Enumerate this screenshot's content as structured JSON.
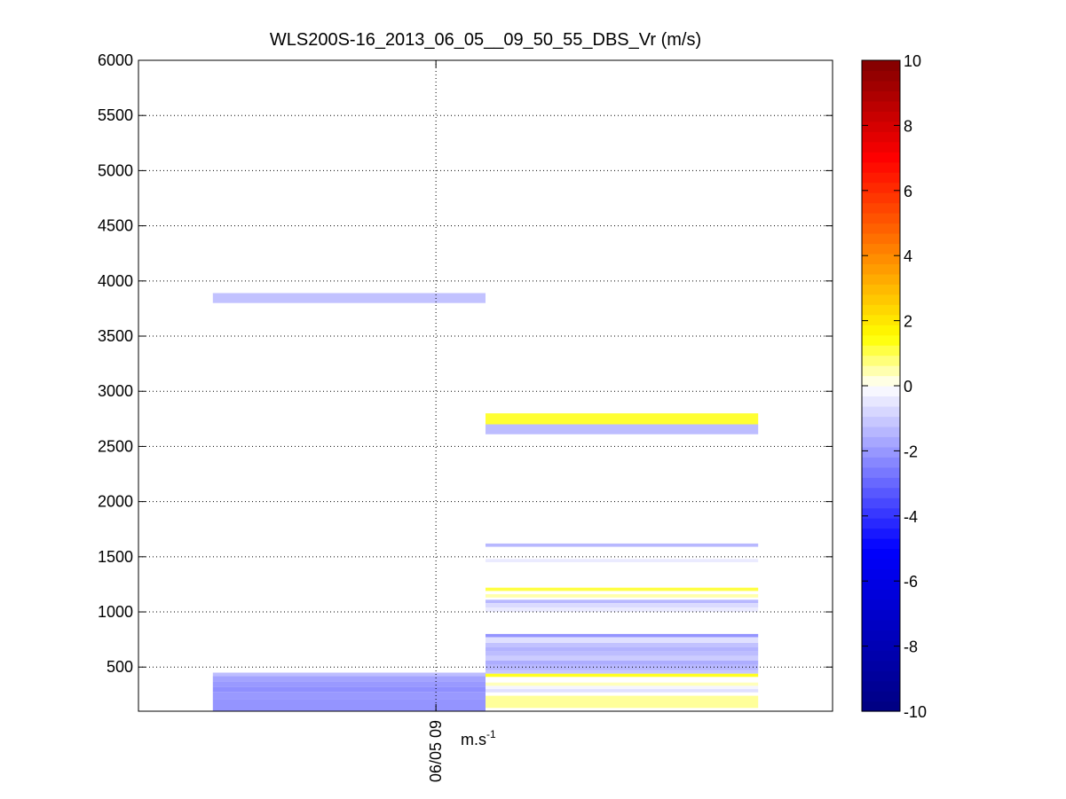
{
  "chart_data": {
    "type": "heatmap",
    "title": "WLS200S-16_2013_06_05__09_50_55_DBS_Vr (m/s)",
    "xlabel": "m.s",
    "xlabel_superscript": "-1",
    "ylabel": "",
    "x_tick_labels": [
      "06/05 09"
    ],
    "x_tick_positions": [
      0.42857
    ],
    "ylim": [
      100,
      6000
    ],
    "y_ticks": [
      500,
      1000,
      1500,
      2000,
      2500,
      3000,
      3500,
      4000,
      4500,
      5000,
      5500,
      6000
    ],
    "grid": true,
    "colorbar": {
      "clim": [
        -10,
        10
      ],
      "ticks": [
        -10,
        -8,
        -6,
        -4,
        -2,
        0,
        2,
        4,
        6,
        8,
        10
      ],
      "placement": "right"
    },
    "column_bounds": [
      [
        0.10714,
        0.5
      ],
      [
        0.5,
        0.89286
      ]
    ],
    "columns": [
      {
        "cells": [
          {
            "y0": 3800,
            "y1": 3890,
            "vr": -1.2
          },
          {
            "y0": 100,
            "y1": 210,
            "vr": -2.1
          },
          {
            "y0": 210,
            "y1": 270,
            "vr": -2.0
          },
          {
            "y0": 270,
            "y1": 320,
            "vr": -2.2
          },
          {
            "y0": 320,
            "y1": 370,
            "vr": -2.0
          },
          {
            "y0": 370,
            "y1": 420,
            "vr": -1.8
          },
          {
            "y0": 420,
            "y1": 450,
            "vr": -1.3
          }
        ]
      },
      {
        "cells": [
          {
            "y0": 2700,
            "y1": 2800,
            "vr": 1.2
          },
          {
            "y0": 2610,
            "y1": 2700,
            "vr": -1.3
          },
          {
            "y0": 1590,
            "y1": 1620,
            "vr": -1.4
          },
          {
            "y0": 1450,
            "y1": 1480,
            "vr": -0.4
          },
          {
            "y0": 1190,
            "y1": 1220,
            "vr": 1.1
          },
          {
            "y0": 1130,
            "y1": 1160,
            "vr": 0.5
          },
          {
            "y0": 1080,
            "y1": 1110,
            "vr": -1.4
          },
          {
            "y0": 1040,
            "y1": 1080,
            "vr": -0.7
          },
          {
            "y0": 1000,
            "y1": 1040,
            "vr": -0.4
          },
          {
            "y0": 770,
            "y1": 800,
            "vr": -2.1
          },
          {
            "y0": 720,
            "y1": 770,
            "vr": -0.6
          },
          {
            "y0": 680,
            "y1": 720,
            "vr": -1.2
          },
          {
            "y0": 640,
            "y1": 680,
            "vr": -1.5
          },
          {
            "y0": 600,
            "y1": 640,
            "vr": -1.3
          },
          {
            "y0": 560,
            "y1": 600,
            "vr": -1.0
          },
          {
            "y0": 520,
            "y1": 560,
            "vr": -1.6
          },
          {
            "y0": 470,
            "y1": 520,
            "vr": -1.4
          },
          {
            "y0": 440,
            "y1": 470,
            "vr": -1.1
          },
          {
            "y0": 410,
            "y1": 440,
            "vr": 1.3
          },
          {
            "y0": 360,
            "y1": 410,
            "vr": 0.0
          },
          {
            "y0": 330,
            "y1": 360,
            "vr": 0.4
          },
          {
            "y0": 300,
            "y1": 330,
            "vr": -0.2
          },
          {
            "y0": 270,
            "y1": 300,
            "vr": -0.6
          },
          {
            "y0": 240,
            "y1": 270,
            "vr": 0.0
          },
          {
            "y0": 130,
            "y1": 240,
            "vr": 0.6
          }
        ]
      }
    ]
  }
}
